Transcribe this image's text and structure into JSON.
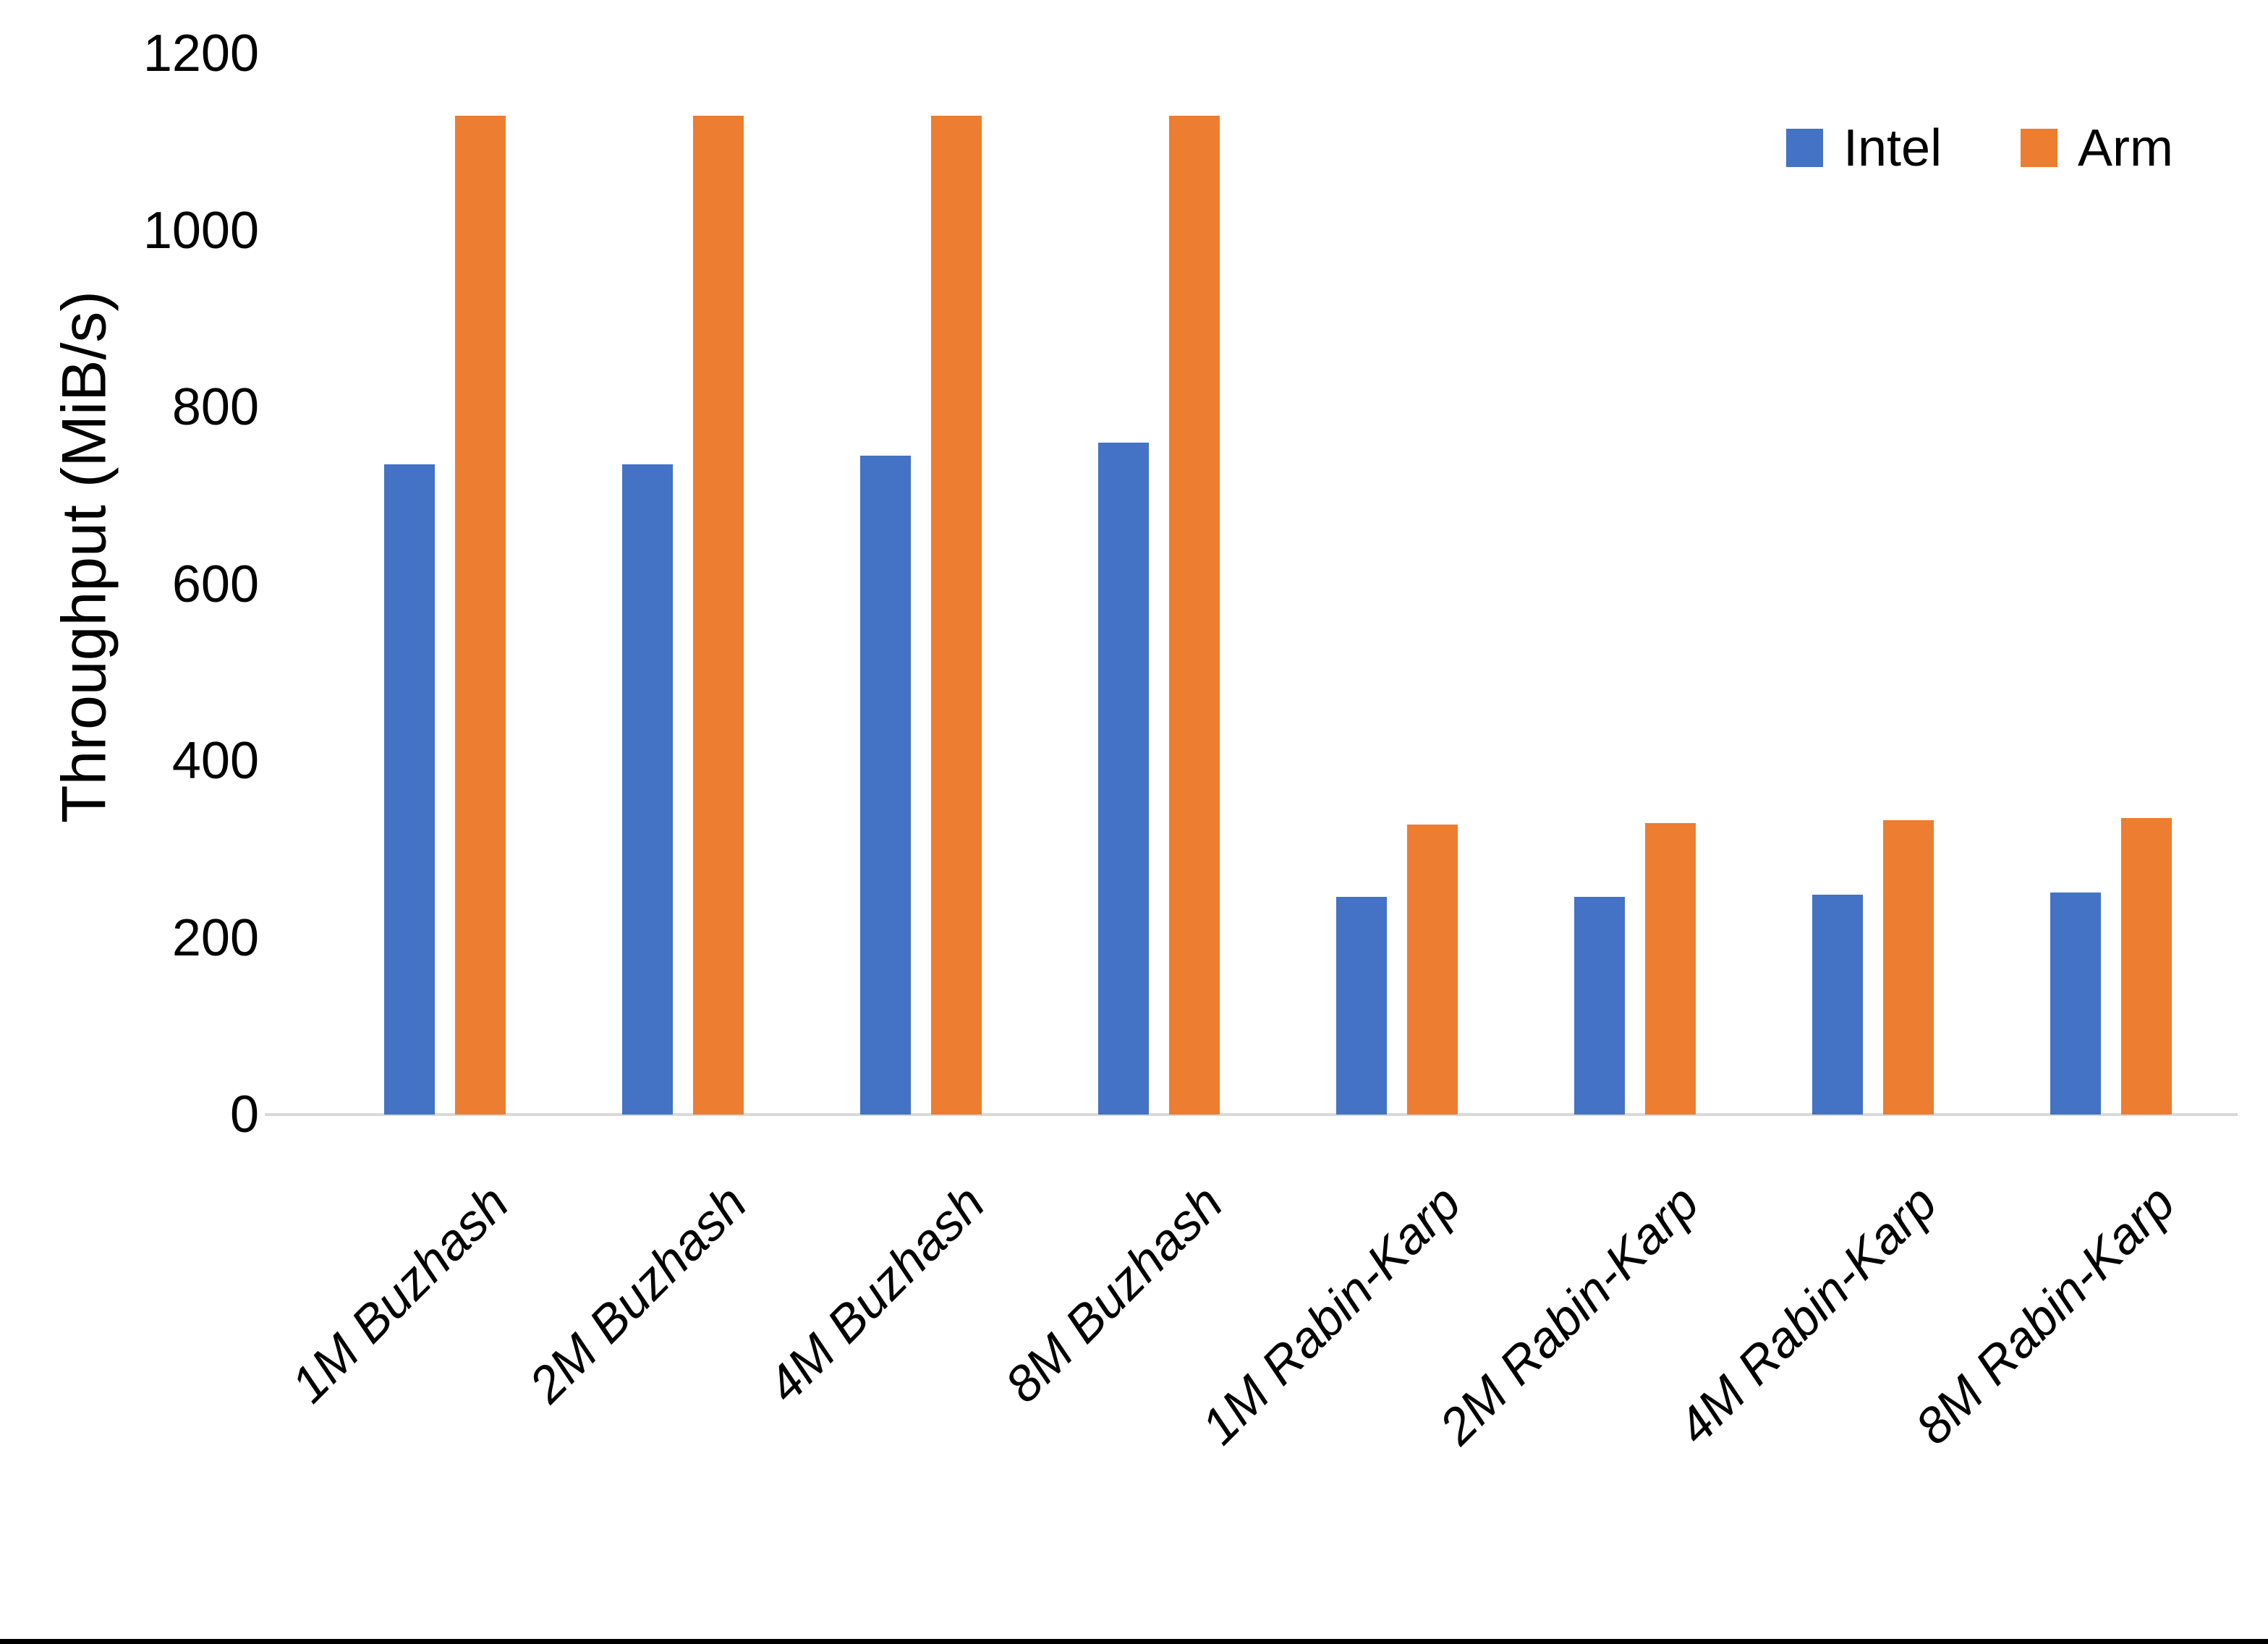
{
  "chart_data": {
    "type": "bar",
    "title": "",
    "xlabel": "",
    "ylabel": "Throughput (MiB/s)",
    "categories": [
      "1M Buzhash",
      "2M Buzhash",
      "4M Buzhash",
      "8M Buzhash",
      "1M Rabin-Karp",
      "2M Rabin-Karp",
      "4M Rabin-Karp",
      "8M Rabin-Karp"
    ],
    "series": [
      {
        "name": "Intel",
        "color": "#4472C4",
        "values": [
          735,
          735,
          745,
          760,
          246,
          246,
          249,
          251
        ]
      },
      {
        "name": "Arm",
        "color": "#ED7D31",
        "values": [
          1130,
          1130,
          1130,
          1130,
          328,
          330,
          333,
          335
        ]
      }
    ],
    "y_axis": {
      "min": 0,
      "max": 1200,
      "tick_step": 200,
      "tick_labels": [
        "0",
        "200",
        "400",
        "600",
        "800",
        "1000",
        "1200"
      ]
    },
    "legend": {
      "position": "top-right",
      "entries": [
        "Intel",
        "Arm"
      ]
    },
    "grid": false,
    "axis_line_color": "#D9D9D9",
    "bottom_border_color": "#000000"
  }
}
